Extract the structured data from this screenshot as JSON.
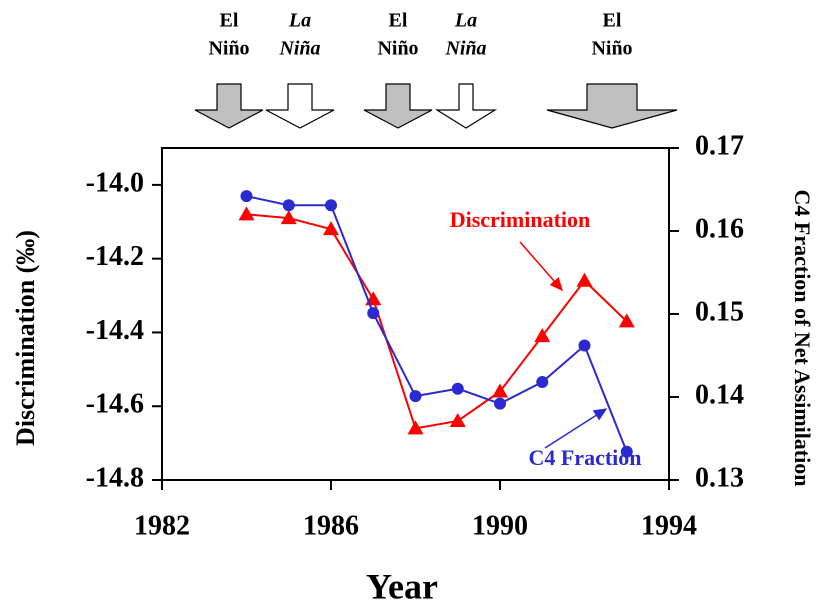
{
  "chart_data": {
    "type": "line",
    "x": [
      1984,
      1985,
      1986,
      1987,
      1988,
      1989,
      1990,
      1991,
      1992,
      1993
    ],
    "xlabel": "Year",
    "ylabel": "Discrimination (‰)",
    "y2label": "C4 Fraction of Net Assimilation",
    "xlim": [
      1982,
      1994
    ],
    "xticks": [
      1982,
      1986,
      1990,
      1994
    ],
    "ylim": [
      -14.8,
      -13.9
    ],
    "yticks": [
      -14.8,
      -14.6,
      -14.4,
      -14.2,
      {
        "value": -14.0,
        "label": "-14.0"
      }
    ],
    "y2lim": [
      0.13,
      0.17
    ],
    "y2ticks": [
      0.13,
      0.14,
      0.15,
      0.16,
      0.17
    ],
    "series": [
      {
        "name": "Discrimination",
        "color": "#ff0000",
        "values": [
          -14.08,
          -14.09,
          -14.12,
          -14.31,
          -14.66,
          -14.64,
          -14.56,
          -14.41,
          -14.26,
          -14.37
        ]
      },
      {
        "name": "C4 Fraction",
        "color": "#2a2ad0",
        "axis": "y2",
        "values": [
          0.1642,
          0.1631,
          0.1631,
          0.1501,
          0.1401,
          0.141,
          0.1392,
          0.1418,
          0.1462,
          0.1334
        ]
      }
    ],
    "annotations": [
      [
        "El",
        "Niño"
      ],
      [
        "La",
        "Niña"
      ],
      [
        "El",
        "Niño"
      ],
      [
        "La",
        "Niña"
      ],
      [
        "El",
        "Niño"
      ]
    ]
  }
}
